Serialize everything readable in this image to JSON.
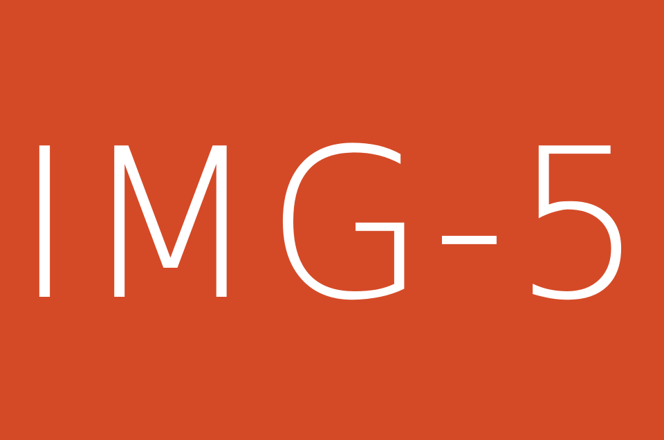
{
  "image": {
    "label": "IMG-5",
    "colors": {
      "background": "#D44A27",
      "text": "#FFFFFF"
    }
  }
}
